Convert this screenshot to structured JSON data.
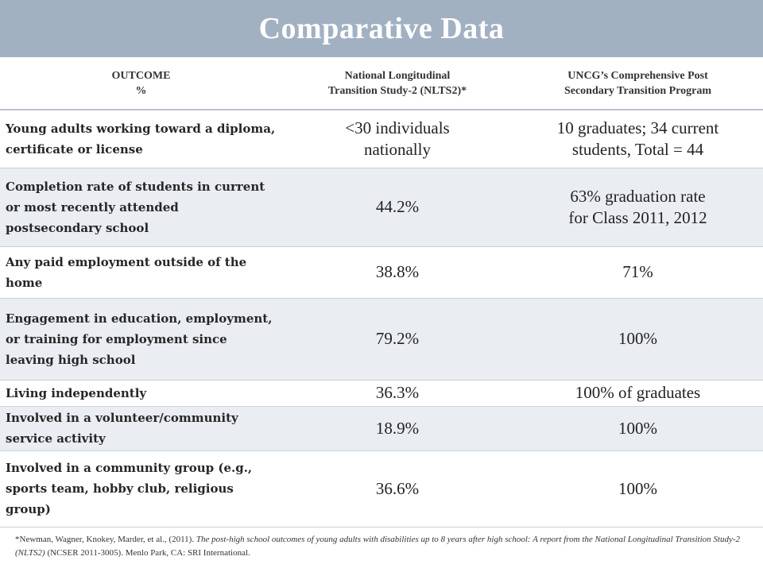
{
  "title": "Comparative Data",
  "headers": {
    "outcome": [
      "OUTCOME",
      "%"
    ],
    "nlts2": [
      "National Longitudinal",
      "Transition Study-2 (NLTS2)*"
    ],
    "uncg": [
      "UNCG’s Comprehensive Post",
      "Secondary Transition Program"
    ]
  },
  "rows": [
    {
      "outcome": "Young adults working toward a diploma, certificate or license",
      "nlts2": [
        "<30 individuals",
        "nationally"
      ],
      "uncg": [
        "10 graduates; 34 current",
        "students, Total = 44"
      ]
    },
    {
      "outcome": "Completion rate of students in current or most recently attended postsecondary school",
      "nlts2": [
        "44.2%"
      ],
      "uncg": [
        "63% graduation rate",
        "for Class 2011, 2012"
      ]
    },
    {
      "outcome": "Any paid employment outside of the home",
      "nlts2": [
        "38.8%"
      ],
      "uncg": [
        "71%"
      ]
    },
    {
      "outcome": "Engagement in education, employment, or training for employment since leaving high school",
      "nlts2": [
        "79.2%"
      ],
      "uncg": [
        "100%"
      ]
    },
    {
      "outcome": "Living independently",
      "nlts2": [
        "36.3%"
      ],
      "uncg": [
        "100% of graduates"
      ]
    },
    {
      "outcome": "Involved in a volunteer/community service activity",
      "nlts2": [
        "18.9%"
      ],
      "uncg": [
        "100%"
      ]
    },
    {
      "outcome": "Involved in a community group (e.g., sports team, hobby club, religious group)",
      "nlts2": [
        "36.6%"
      ],
      "uncg": [
        "100%"
      ]
    }
  ],
  "footnote": {
    "prefix": "*Newman, Wagner, Knokey, Marder, et al., (2011). ",
    "italic": "The post-high school outcomes of young adults with disabilities up to 8 years after high school: A report from the National Longitudinal Transition Study-2 (NLTS2)",
    "suffix": " (NCSER 2011-3005). Menlo Park, CA: SRI International."
  }
}
